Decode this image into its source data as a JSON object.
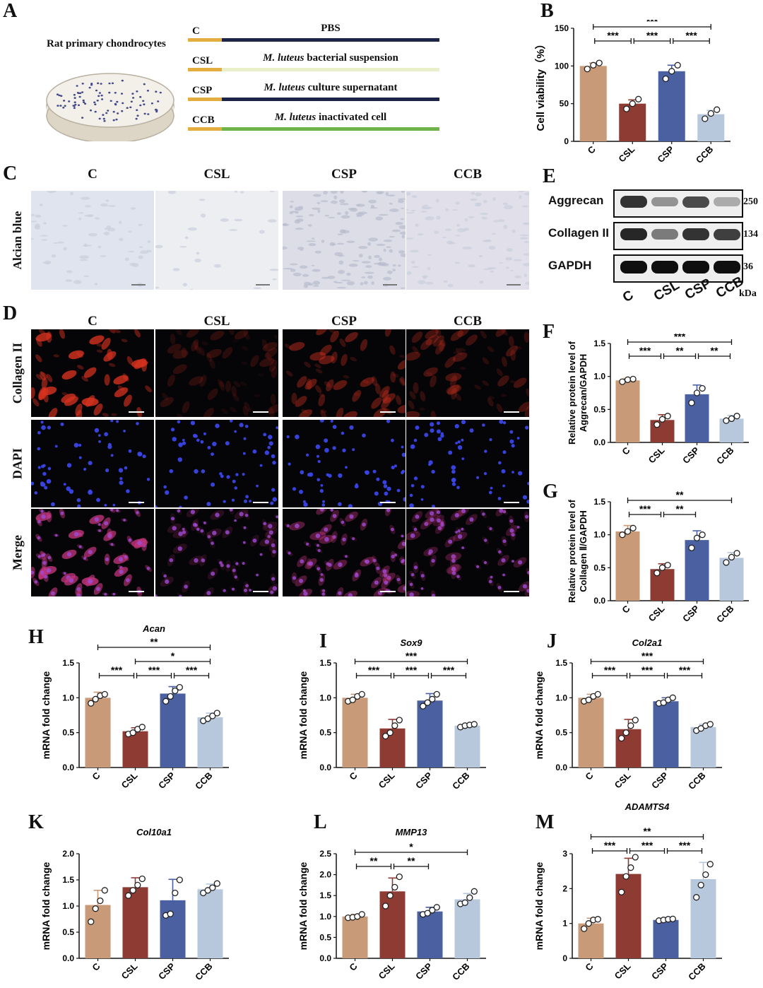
{
  "panel_letters": {
    "A": "A",
    "B": "B",
    "C": "C",
    "D": "D",
    "E": "E",
    "F": "F",
    "G": "G",
    "H": "H",
    "I": "I",
    "J": "J",
    "K": "K",
    "L": "L",
    "M": "M"
  },
  "panel_a": {
    "title": "Rat primary chondrocytes",
    "rows": [
      {
        "code": "C",
        "label_em": "",
        "label": "PBS",
        "color": "#1c2448"
      },
      {
        "code": "CSL",
        "label_em": "M. luteus",
        "label": " bacterial suspension",
        "color": "#e9efc9"
      },
      {
        "code": "CSP",
        "label_em": "M. luteus",
        "label": " culture supernatant",
        "color": "#1c2448"
      },
      {
        "code": "CCB",
        "label_em": "M. luteus",
        "label": " inactivated cell",
        "color": "#6db34a"
      }
    ],
    "start_color": "#e3ad3f"
  },
  "micro_columns": [
    "C",
    "CSL",
    "CSP",
    "CCB"
  ],
  "panel_c": {
    "row_label": "Alcian blue"
  },
  "panel_d": {
    "row_labels": [
      "Collagen II",
      "DAPI",
      "Merge"
    ]
  },
  "panel_e": {
    "rows": [
      {
        "name": "Aggrecan",
        "kda": "250",
        "intensity": [
          0.85,
          0.45,
          0.75,
          0.35
        ]
      },
      {
        "name": "Collagen II",
        "kda": "134",
        "intensity": [
          0.9,
          0.55,
          0.85,
          0.8
        ]
      },
      {
        "name": "GAPDH",
        "kda": "36",
        "intensity": [
          1.0,
          1.0,
          1.0,
          1.0
        ]
      }
    ],
    "lanes": [
      "C",
      "CSL",
      "CSP",
      "CCB"
    ],
    "unit": "kDa"
  },
  "colors": {
    "C": "#c99a78",
    "CSL": "#8e3b33",
    "CSP": "#4a60a0",
    "CCB": "#b8c8dc"
  },
  "chart_data": [
    {
      "id": "B",
      "type": "bar",
      "title": "",
      "ylabel": "Cell viability（%）",
      "categories": [
        "C",
        "CSL",
        "CSP",
        "CCB"
      ],
      "values": [
        100,
        50,
        93,
        36
      ],
      "errors": [
        4,
        5,
        8,
        5
      ],
      "ylim": [
        0,
        150
      ],
      "yticks": [
        "0",
        "50",
        "100",
        "150"
      ],
      "points": [
        [
          96,
          101,
          104
        ],
        [
          43,
          50,
          56
        ],
        [
          83,
          93,
          101
        ],
        [
          30,
          37,
          42
        ]
      ],
      "sig": [
        {
          "from": 0,
          "to": 3,
          "label": "***"
        },
        {
          "from": 0,
          "to": 1,
          "label": "***"
        },
        {
          "from": 1,
          "to": 2,
          "label": "***"
        },
        {
          "from": 2,
          "to": 3,
          "label": "***"
        }
      ]
    },
    {
      "id": "F",
      "type": "bar",
      "title": "",
      "ylabel": [
        "Relative protein level of",
        "Aggrecan/GAPDH"
      ],
      "categories": [
        "C",
        "CSL",
        "CSP",
        "CCB"
      ],
      "values": [
        0.94,
        0.34,
        0.73,
        0.36
      ],
      "errors": [
        0.03,
        0.08,
        0.14,
        0.05
      ],
      "ylim": [
        0,
        1.5
      ],
      "yticks": [
        "0.0",
        "0.5",
        "1.0",
        "1.5"
      ],
      "points": [
        [
          0.92,
          0.95,
          0.96
        ],
        [
          0.27,
          0.35,
          0.4
        ],
        [
          0.6,
          0.75,
          0.82
        ],
        [
          0.33,
          0.36,
          0.4
        ]
      ],
      "sig": [
        {
          "from": 0,
          "to": 3,
          "label": "***"
        },
        {
          "from": 0,
          "to": 1,
          "label": "***"
        },
        {
          "from": 1,
          "to": 2,
          "label": "**"
        },
        {
          "from": 2,
          "to": 3,
          "label": "**"
        }
      ]
    },
    {
      "id": "G",
      "type": "bar",
      "title": "",
      "ylabel": [
        "Relative protein level of",
        "Collagen Ⅱ/GAPDH"
      ],
      "categories": [
        "C",
        "CSL",
        "CSP",
        "CCB"
      ],
      "values": [
        1.05,
        0.48,
        0.92,
        0.65
      ],
      "errors": [
        0.09,
        0.08,
        0.14,
        0.08
      ],
      "ylim": [
        0,
        1.5
      ],
      "yticks": [
        "0.0",
        "0.5",
        "1.0",
        "1.5"
      ],
      "points": [
        [
          1.0,
          1.05,
          1.1
        ],
        [
          0.42,
          0.5,
          0.54
        ],
        [
          0.8,
          0.95,
          1.0
        ],
        [
          0.58,
          0.66,
          0.72
        ]
      ],
      "sig": [
        {
          "from": 0,
          "to": 3,
          "label": "**"
        },
        {
          "from": 0,
          "to": 1,
          "label": "***"
        },
        {
          "from": 1,
          "to": 2,
          "label": "**"
        }
      ]
    },
    {
      "id": "H",
      "type": "bar",
      "title": "Acan",
      "ylabel": "mRNA fold change",
      "categories": [
        "C",
        "CSL",
        "CSP",
        "CCB"
      ],
      "values": [
        1.0,
        0.52,
        1.06,
        0.72
      ],
      "errors": [
        0.08,
        0.05,
        0.1,
        0.06
      ],
      "ylim": [
        0,
        1.5
      ],
      "yticks": [
        "0.0",
        "0.5",
        "1.0",
        "1.5"
      ],
      "points": [
        [
          0.92,
          0.98,
          1.03,
          1.05
        ],
        [
          0.48,
          0.5,
          0.55,
          0.58
        ],
        [
          0.95,
          1.02,
          1.1,
          1.15
        ],
        [
          0.67,
          0.7,
          0.74,
          0.78
        ]
      ],
      "sig": [
        {
          "from": 0,
          "to": 3,
          "label": "**"
        },
        {
          "from": 1,
          "to": 3,
          "label": "*"
        },
        {
          "from": 0,
          "to": 1,
          "label": "***"
        },
        {
          "from": 1,
          "to": 2,
          "label": "***"
        },
        {
          "from": 2,
          "to": 3,
          "label": "***"
        }
      ]
    },
    {
      "id": "I",
      "type": "bar",
      "title": "Sox9",
      "ylabel": "mRNA fold change",
      "categories": [
        "C",
        "CSL",
        "CSP",
        "CCB"
      ],
      "values": [
        1.0,
        0.56,
        0.96,
        0.6
      ],
      "errors": [
        0.05,
        0.13,
        0.1,
        0.03
      ],
      "ylim": [
        0,
        1.5
      ],
      "yticks": [
        "0.0",
        "0.5",
        "1.0",
        "1.5"
      ],
      "points": [
        [
          0.95,
          0.97,
          1.02,
          1.05
        ],
        [
          0.45,
          0.5,
          0.6,
          0.68
        ],
        [
          0.88,
          0.93,
          0.98,
          1.05
        ],
        [
          0.58,
          0.6,
          0.61,
          0.62
        ]
      ],
      "sig": [
        {
          "from": 0,
          "to": 3,
          "label": "***"
        },
        {
          "from": 0,
          "to": 1,
          "label": "***"
        },
        {
          "from": 1,
          "to": 2,
          "label": "***"
        },
        {
          "from": 2,
          "to": 3,
          "label": "***"
        }
      ]
    },
    {
      "id": "J",
      "type": "bar",
      "title": "Col2a1",
      "ylabel": "mRNA fold change",
      "categories": [
        "C",
        "CSL",
        "CSP",
        "CCB"
      ],
      "values": [
        1.0,
        0.55,
        0.95,
        0.58
      ],
      "errors": [
        0.05,
        0.14,
        0.05,
        0.04
      ],
      "ylim": [
        0,
        1.5
      ],
      "yticks": [
        "0.0",
        "0.5",
        "1.0",
        "1.5"
      ],
      "points": [
        [
          0.95,
          0.97,
          1.02,
          1.05
        ],
        [
          0.42,
          0.5,
          0.6,
          0.68
        ],
        [
          0.92,
          0.93,
          0.97,
          1.0
        ],
        [
          0.53,
          0.56,
          0.6,
          0.62
        ]
      ],
      "sig": [
        {
          "from": 0,
          "to": 3,
          "label": "***"
        },
        {
          "from": 0,
          "to": 1,
          "label": "***"
        },
        {
          "from": 1,
          "to": 2,
          "label": "***"
        },
        {
          "from": 2,
          "to": 3,
          "label": "***"
        }
      ]
    },
    {
      "id": "K",
      "type": "bar",
      "title": "Col10a1",
      "ylabel": "mRNA fold change",
      "categories": [
        "C",
        "CSL",
        "CSP",
        "CCB"
      ],
      "values": [
        1.02,
        1.36,
        1.11,
        1.32
      ],
      "errors": [
        0.28,
        0.18,
        0.4,
        0.1
      ],
      "ylim": [
        0,
        2.0
      ],
      "yticks": [
        "0.0",
        "0.5",
        "1.0",
        "1.5",
        "2.0"
      ],
      "points": [
        [
          0.7,
          0.95,
          1.1,
          1.3
        ],
        [
          1.2,
          1.3,
          1.4,
          1.52
        ],
        [
          0.82,
          0.85,
          1.25,
          1.5
        ],
        [
          1.25,
          1.3,
          1.35,
          1.43
        ]
      ],
      "sig": []
    },
    {
      "id": "L",
      "type": "bar",
      "title": "MMP13",
      "ylabel": "mRNA fold change",
      "categories": [
        "C",
        "CSL",
        "CSP",
        "CCB"
      ],
      "values": [
        1.0,
        1.6,
        1.12,
        1.41
      ],
      "errors": [
        0.05,
        0.32,
        0.1,
        0.14
      ],
      "ylim": [
        0,
        2.5
      ],
      "yticks": [
        "0.0",
        "0.5",
        "1.0",
        "1.5",
        "2.0",
        "2.5"
      ],
      "points": [
        [
          0.97,
          0.98,
          1.0,
          1.05
        ],
        [
          1.25,
          1.5,
          1.7,
          1.95
        ],
        [
          1.05,
          1.08,
          1.15,
          1.22
        ],
        [
          1.3,
          1.33,
          1.45,
          1.6
        ]
      ],
      "sig": [
        {
          "from": 0,
          "to": 3,
          "label": "*"
        },
        {
          "from": 0,
          "to": 1,
          "label": "**"
        },
        {
          "from": 1,
          "to": 2,
          "label": "**"
        }
      ]
    },
    {
      "id": "M",
      "type": "bar",
      "title": "ADAMTS4",
      "ylabel": "mRNA fold change",
      "categories": [
        "C",
        "CSL",
        "CSP",
        "CCB"
      ],
      "values": [
        1.0,
        2.42,
        1.1,
        2.27
      ],
      "errors": [
        0.15,
        0.45,
        0.04,
        0.48
      ],
      "ylim": [
        0,
        3
      ],
      "yticks": [
        "0",
        "1",
        "2",
        "3"
      ],
      "points": [
        [
          0.85,
          1.0,
          1.1,
          1.12
        ],
        [
          1.9,
          2.35,
          2.6,
          2.9
        ],
        [
          1.08,
          1.1,
          1.12,
          1.13
        ],
        [
          1.75,
          2.1,
          2.4,
          2.7
        ]
      ],
      "sig": [
        {
          "from": 0,
          "to": 3,
          "label": "**"
        },
        {
          "from": 0,
          "to": 1,
          "label": "***"
        },
        {
          "from": 1,
          "to": 2,
          "label": "***"
        },
        {
          "from": 2,
          "to": 3,
          "label": "***"
        }
      ]
    }
  ]
}
